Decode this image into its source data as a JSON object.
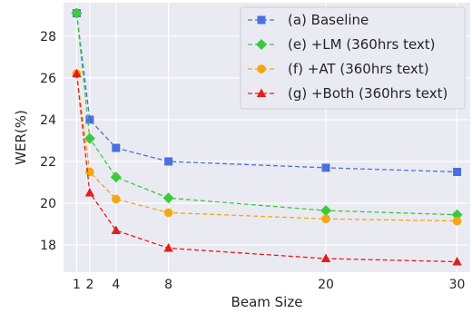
{
  "chart_data": {
    "type": "line",
    "title": "",
    "xlabel": "Beam Size",
    "ylabel": "WER(%)",
    "x": [
      1,
      2,
      4,
      8,
      20,
      30
    ],
    "xticks": [
      1,
      2,
      4,
      8,
      20,
      30
    ],
    "xlim": [
      0.0,
      31.0
    ],
    "yticks": [
      18,
      20,
      22,
      24,
      26,
      28
    ],
    "ylim": [
      16.7,
      29.6
    ],
    "grid": true,
    "legend_position": "top-right",
    "background": "#eaeaf2",
    "series": [
      {
        "name": "(a) Baseline",
        "color": "#4a71db",
        "marker": "square",
        "values": [
          29.1,
          24.0,
          22.65,
          22.0,
          21.7,
          21.5
        ]
      },
      {
        "name": "(e) +LM (360hrs text)",
        "color": "#3cc93c",
        "marker": "diamond",
        "values": [
          29.1,
          23.1,
          21.25,
          20.25,
          19.65,
          19.45
        ]
      },
      {
        "name": "(f)  +AT (360hrs text)",
        "color": "#f5a70f",
        "marker": "circle",
        "values": [
          26.2,
          21.5,
          20.2,
          19.55,
          19.25,
          19.15
        ]
      },
      {
        "name": "(g) +Both (360hrs text)",
        "color": "#e81b1b",
        "marker": "triangle",
        "values": [
          26.2,
          20.5,
          18.7,
          17.85,
          17.35,
          17.2
        ]
      }
    ]
  }
}
